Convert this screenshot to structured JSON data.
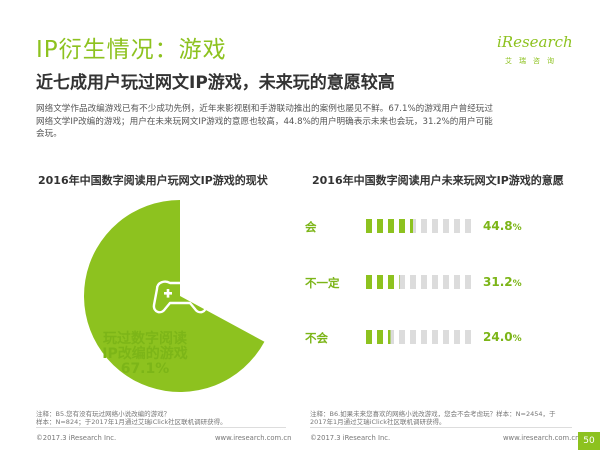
{
  "header": {
    "title": "IP衍生情况：游戏",
    "subtitle": "近七成用户玩过网文IP游戏，未来玩的意愿较高",
    "intro_line1": "网络文学作品改编游戏已有不少成功先例，近年来影视剧和手游联动推出的案例也屡见不鲜。67.1%的游戏用户曾经玩过",
    "intro_line2": "网络文学IP改编的游戏；用户在未来玩网文IP游戏的意愿也较高，44.8%的用户明确表示未来也会玩，31.2%的用户可能",
    "intro_line3": "会玩。"
  },
  "logo": {
    "main": "iResearch",
    "sub": "艾瑞咨询"
  },
  "colors": {
    "accent": "#8dc21f",
    "accent_dark": "#7cb518",
    "bar_empty": "#dcdcdc"
  },
  "chart_data": [
    {
      "type": "pie",
      "title": "2016年中国数字阅读用户玩网文IP游戏的现状",
      "slices": [
        {
          "label": "玩过数字阅读IP改编的游戏",
          "value": 67.1
        },
        {
          "label": "",
          "value": 32.9
        }
      ],
      "center_icon": "gamepad-icon",
      "label_line1": "玩过数字阅读",
      "label_line2": "IP改编的游戏",
      "label_value": "67.1%"
    },
    {
      "type": "bar",
      "title": "2016年中国数字阅读用户未来玩网文IP游戏的意愿",
      "categories": [
        "会",
        "不一定",
        "不会"
      ],
      "values": [
        44.8,
        31.2,
        24.0
      ],
      "value_labels": [
        "44.8",
        "31.2",
        "24.0"
      ],
      "unit": "%",
      "max": 100
    }
  ],
  "footer": {
    "note_left_line1": "注释：B5.您有没有玩过网络小说改编的游戏？",
    "note_left_line2": "样本：N=824；于2017年1月通过艾瑞iClick社区联机调研获得。",
    "note_right_line1": "注释：B6.如果未来您喜欢的网络小说改游戏，您会不会考虑玩？样本：N=2454，于",
    "note_right_line2": "2017年1月通过艾瑞iClick社区联机调研获得。",
    "copyright_left": "©2017.3 iResearch Inc.",
    "copyright_right": "©2017.3 iResearch Inc.",
    "website_left": "www.iresearch.com.cn",
    "website_right": "www.iresearch.com.cn",
    "page_number": "50"
  }
}
